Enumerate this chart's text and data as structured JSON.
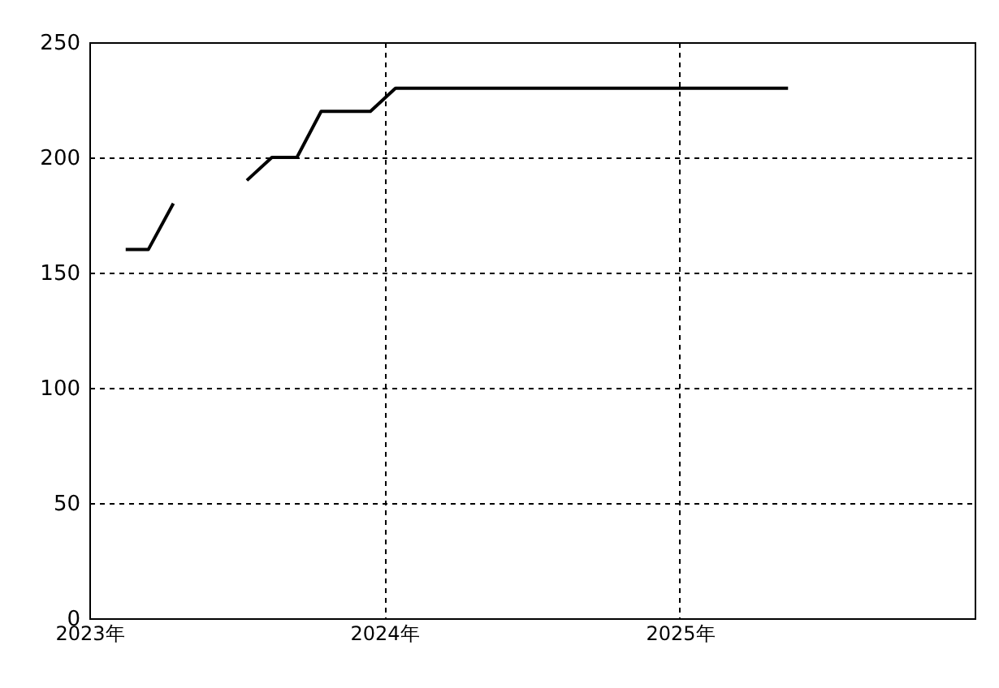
{
  "chart_data": {
    "type": "line",
    "x": [
      "2023-02-15",
      "2023-03-15",
      "2023-04-15",
      "2023-05-15",
      "2023-06-15",
      "2023-07-15",
      "2023-08-15",
      "2023-09-15",
      "2023-10-15",
      "2023-11-15",
      "2023-12-15",
      "2024-01-15",
      "2024-02-15",
      "2024-03-15",
      "2024-04-15",
      "2024-05-15",
      "2024-06-15",
      "2024-07-15",
      "2024-08-15",
      "2024-09-15",
      "2024-10-15",
      "2024-11-15",
      "2024-12-15",
      "2025-01-15",
      "2025-02-15",
      "2025-03-15",
      "2025-04-15",
      "2025-05-15"
    ],
    "series": [
      {
        "color": "#000000",
        "values": [
          160,
          160,
          180,
          null,
          null,
          190,
          200,
          200,
          220,
          220,
          220,
          230,
          230,
          230,
          230,
          230,
          230,
          230,
          230,
          230,
          230,
          230,
          230,
          230,
          230,
          230,
          230,
          230
        ]
      }
    ],
    "xlim": [
      "2023-01-01",
      "2026-01-01"
    ],
    "xticks": [
      {
        "value": "2023-01-01",
        "label": "2023年"
      },
      {
        "value": "2024-01-01",
        "label": "2024年"
      },
      {
        "value": "2025-01-01",
        "label": "2025年"
      }
    ],
    "ylim": [
      0,
      250
    ],
    "yticks": [
      0,
      50,
      100,
      150,
      200,
      250
    ],
    "grid": true,
    "marker": "none",
    "line_style": "solid"
  }
}
